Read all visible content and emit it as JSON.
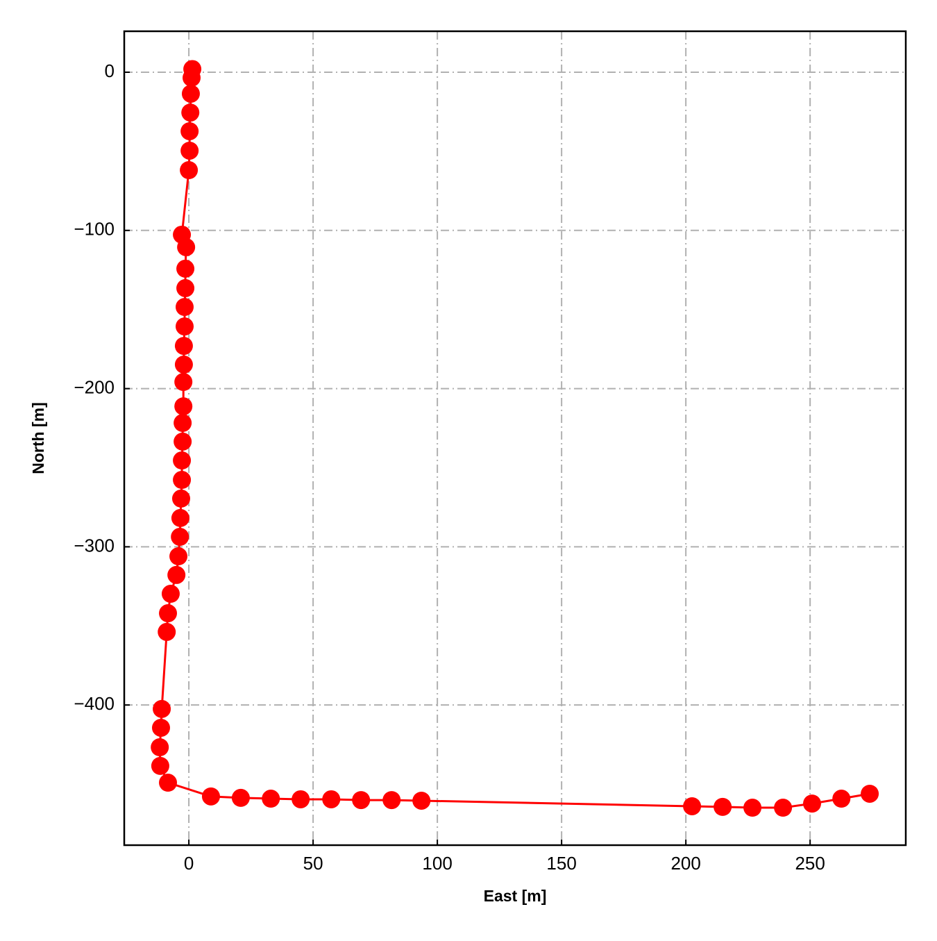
{
  "chart_data": {
    "type": "line",
    "markers": true,
    "color": "#ff0000",
    "xlabel": "East [m]",
    "ylabel": "North [m]",
    "x": [
      1.4,
      1.1,
      0.8,
      0.6,
      0.3,
      0.3,
      0.0,
      -2.8,
      -1.1,
      -1.4,
      -1.4,
      -1.7,
      -1.7,
      -2.0,
      -2.0,
      -2.2,
      -2.2,
      -2.5,
      -2.5,
      -2.8,
      -2.8,
      -3.1,
      -3.4,
      -3.6,
      -4.2,
      -5.0,
      -7.3,
      -8.4,
      -8.9,
      -10.9,
      -11.2,
      -11.7,
      -11.5,
      -8.4,
      8.9,
      20.9,
      33.0,
      45.0,
      57.3,
      69.3,
      81.6,
      93.6,
      202.5,
      214.8,
      226.8,
      239.1,
      250.8,
      262.6,
      274.0
    ],
    "y": [
      2.0,
      -3.5,
      -13.6,
      -25.5,
      -37.3,
      -49.6,
      -61.9,
      -102.7,
      -110.6,
      -124.2,
      -136.5,
      -148.4,
      -160.7,
      -173.0,
      -184.8,
      -195.8,
      -211.2,
      -221.7,
      -233.5,
      -245.4,
      -257.7,
      -269.5,
      -281.8,
      -293.7,
      -306.0,
      -317.8,
      -329.7,
      -342.0,
      -353.8,
      -402.5,
      -414.4,
      -426.7,
      -438.5,
      -449.1,
      -457.8,
      -458.7,
      -459.2,
      -459.6,
      -459.6,
      -460.1,
      -460.1,
      -460.5,
      -464.0,
      -464.4,
      -464.9,
      -464.9,
      -462.3,
      -459.2,
      -456.1
    ],
    "xlim": [
      -26,
      288.5
    ],
    "ylim": [
      -488.6,
      25.9
    ],
    "xticks": [
      0,
      50,
      100,
      150,
      200,
      250
    ],
    "yticks": [
      0,
      {
        "value": -100,
        "label": "−100"
      },
      {
        "value": -200,
        "label": "−200"
      },
      {
        "value": -300,
        "label": "−300"
      },
      {
        "value": -400,
        "label": "−400"
      }
    ],
    "grid": true
  }
}
